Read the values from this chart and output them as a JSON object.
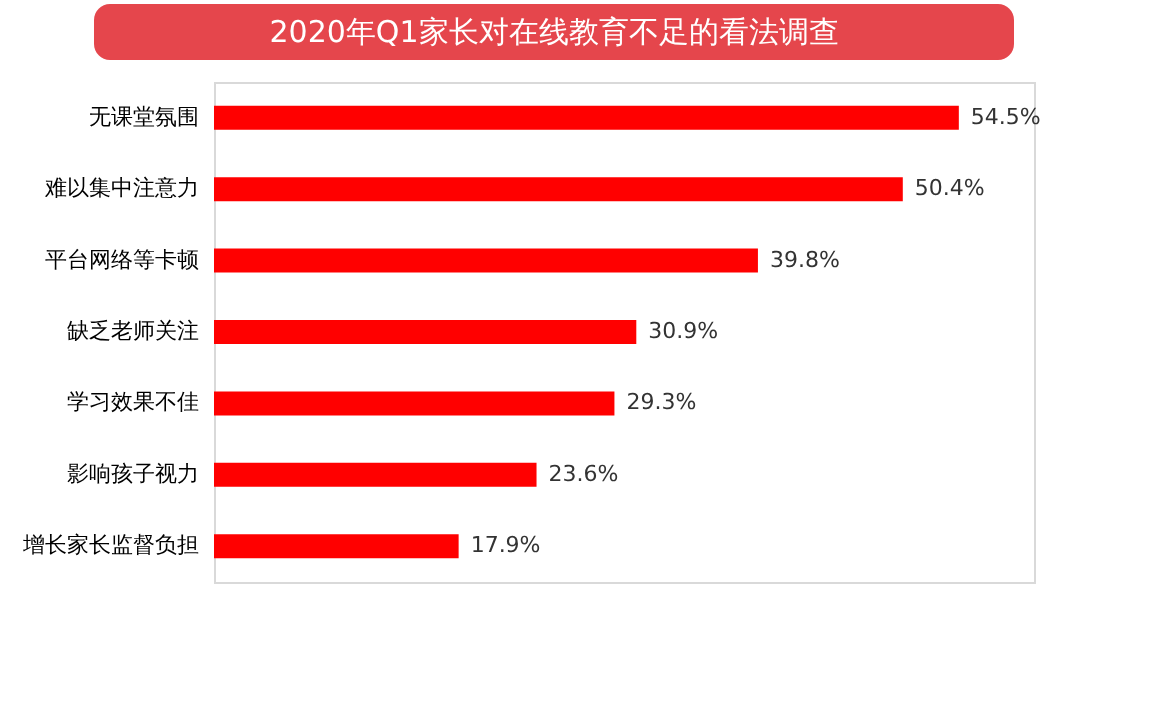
{
  "chart_data": {
    "type": "bar",
    "orientation": "horizontal",
    "title": "2020年Q1家长对在线教育不足的看法调查",
    "categories": [
      "无课堂氛围",
      "难以集中注意力",
      "平台网络等卡顿",
      "缺乏老师关注",
      "学习效果不佳",
      "影响孩子视力",
      "增长家长监督负担"
    ],
    "values": [
      54.5,
      50.4,
      39.8,
      30.9,
      29.3,
      23.6,
      17.9
    ],
    "value_labels": [
      "54.5%",
      "50.4%",
      "39.8%",
      "30.9%",
      "29.3%",
      "23.6%",
      "17.9%"
    ],
    "color": "#ff0000",
    "xlim": [
      0,
      60
    ],
    "grid": false
  }
}
